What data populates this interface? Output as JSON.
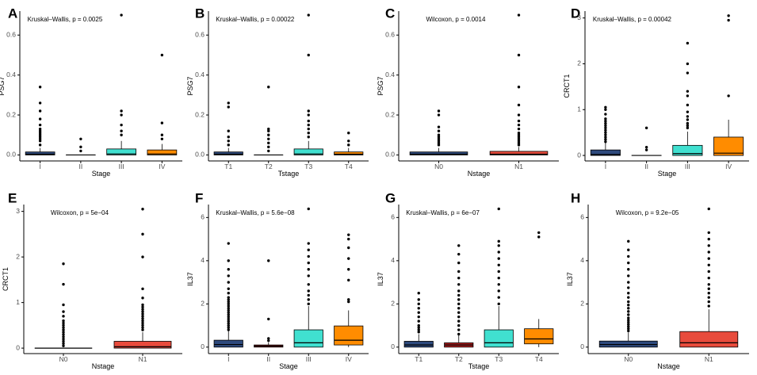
{
  "figure": {
    "description_free": true,
    "colors": {
      "I": "#2e4a7d",
      "II": "#b22222",
      "III": "#40e0d0",
      "IV": "#ff8c00",
      "T1": "#2e4a7d",
      "T2": "#b22222",
      "T3": "#40e0d0",
      "T4": "#ff8c00",
      "N0": "#2e4a7d",
      "N1": "#e84b3c",
      "outline": "#000000",
      "axis": "#000000"
    }
  },
  "chart_data": [
    {
      "panel": "A",
      "type": "box",
      "title": "",
      "stat": "Kruskal–Wallis, p = 0.0025",
      "xlabel": "Stage",
      "ylabel": "PSG7",
      "ylim": [
        -0.03,
        0.72
      ],
      "yticks": [
        "0.0",
        "0.2",
        "0.4",
        "0.6"
      ],
      "ytick_values": [
        0,
        0.2,
        0.4,
        0.6
      ],
      "categories": [
        "I",
        "II",
        "III",
        "IV"
      ],
      "boxes": [
        {
          "name": "I",
          "q1": 0.0,
          "median": 0.004,
          "q3": 0.015,
          "whislo": 0.0,
          "whishi": 0.035,
          "outliers": [
            0.05,
            0.07,
            0.08,
            0.09,
            0.1,
            0.11,
            0.12,
            0.13,
            0.15,
            0.18,
            0.22,
            0.26,
            0.34
          ]
        },
        {
          "name": "II",
          "q1": 0.0,
          "median": 0.0,
          "q3": 0.0,
          "whislo": 0.0,
          "whishi": 0.0,
          "outliers": [
            0.02,
            0.04,
            0.08
          ]
        },
        {
          "name": "III",
          "q1": 0.0,
          "median": 0.005,
          "q3": 0.03,
          "whislo": 0.0,
          "whishi": 0.07,
          "outliers": [
            0.1,
            0.12,
            0.15,
            0.2,
            0.22,
            0.7
          ]
        },
        {
          "name": "IV",
          "q1": 0.0,
          "median": 0.005,
          "q3": 0.025,
          "whislo": 0.0,
          "whishi": 0.055,
          "outliers": [
            0.08,
            0.1,
            0.16,
            0.5
          ]
        }
      ]
    },
    {
      "panel": "B",
      "type": "box",
      "stat": "Kruskal–Wallis, p = 0.00022",
      "xlabel": "Tstage",
      "ylabel": "PSG7",
      "ylim": [
        -0.03,
        0.72
      ],
      "yticks": [
        "0.0",
        "0.2",
        "0.4",
        "0.6"
      ],
      "ytick_values": [
        0,
        0.2,
        0.4,
        0.6
      ],
      "categories": [
        "T1",
        "T2",
        "T3",
        "T4"
      ],
      "boxes": [
        {
          "name": "T1",
          "q1": 0.0,
          "median": 0.004,
          "q3": 0.015,
          "whislo": 0.0,
          "whishi": 0.035,
          "outliers": [
            0.05,
            0.07,
            0.09,
            0.12,
            0.24,
            0.26
          ]
        },
        {
          "name": "T2",
          "q1": 0.0,
          "median": 0.0,
          "q3": 0.0,
          "whislo": 0.0,
          "whishi": 0.0,
          "outliers": [
            0.02,
            0.04,
            0.06,
            0.08,
            0.1,
            0.12,
            0.13,
            0.34
          ]
        },
        {
          "name": "T3",
          "q1": 0.0,
          "median": 0.005,
          "q3": 0.03,
          "whislo": 0.0,
          "whishi": 0.07,
          "outliers": [
            0.09,
            0.11,
            0.13,
            0.15,
            0.17,
            0.2,
            0.22,
            0.5,
            0.7
          ]
        },
        {
          "name": "T4",
          "q1": 0.0,
          "median": 0.004,
          "q3": 0.015,
          "whislo": 0.0,
          "whishi": 0.035,
          "outliers": [
            0.05,
            0.07,
            0.11
          ]
        }
      ]
    },
    {
      "panel": "C",
      "type": "box",
      "stat": "Wilcoxon, p = 0.0014",
      "xlabel": "Nstage",
      "ylabel": "PSG7",
      "ylim": [
        -0.03,
        0.72
      ],
      "yticks": [
        "0.0",
        "0.2",
        "0.4",
        "0.6"
      ],
      "ytick_values": [
        0,
        0.2,
        0.4,
        0.6
      ],
      "categories": [
        "N0",
        "N1"
      ],
      "boxes": [
        {
          "name": "N0",
          "q1": 0.0,
          "median": 0.004,
          "q3": 0.015,
          "whislo": 0.0,
          "whishi": 0.035,
          "outliers": [
            0.05,
            0.06,
            0.07,
            0.08,
            0.09,
            0.1,
            0.12,
            0.14,
            0.2,
            0.22
          ]
        },
        {
          "name": "N1",
          "q1": 0.0,
          "median": 0.004,
          "q3": 0.018,
          "whislo": 0.0,
          "whishi": 0.04,
          "outliers": [
            0.05,
            0.06,
            0.07,
            0.08,
            0.09,
            0.1,
            0.11,
            0.13,
            0.15,
            0.17,
            0.2,
            0.25,
            0.34,
            0.5,
            0.7
          ]
        }
      ]
    },
    {
      "panel": "D",
      "type": "box",
      "stat": "Kruskal–Wallis, p = 0.00042",
      "xlabel": "Stage",
      "ylabel": "CRCT1",
      "ylim": [
        -0.12,
        3.15
      ],
      "yticks": [
        "0",
        "1",
        "2",
        "3"
      ],
      "ytick_values": [
        0,
        1,
        2,
        3
      ],
      "categories": [
        "I",
        "II",
        "III",
        "IV"
      ],
      "boxes": [
        {
          "name": "I",
          "q1": 0.0,
          "median": 0.02,
          "q3": 0.12,
          "whislo": 0.0,
          "whishi": 0.28,
          "outliers": [
            0.3,
            0.35,
            0.4,
            0.45,
            0.5,
            0.55,
            0.6,
            0.65,
            0.7,
            0.75,
            0.8,
            0.9,
            1.0,
            1.05
          ]
        },
        {
          "name": "II",
          "q1": 0.0,
          "median": 0.0,
          "q3": 0.0,
          "whislo": 0.0,
          "whishi": 0.0,
          "outliers": [
            0.12,
            0.18,
            0.6
          ]
        },
        {
          "name": "III",
          "q1": 0.0,
          "median": 0.04,
          "q3": 0.22,
          "whislo": 0.0,
          "whishi": 0.52,
          "outliers": [
            0.6,
            0.65,
            0.7,
            0.78,
            0.85,
            0.95,
            1.1,
            1.3,
            1.4,
            1.8,
            2.0,
            2.45
          ]
        },
        {
          "name": "IV",
          "q1": 0.0,
          "median": 0.05,
          "q3": 0.4,
          "whislo": 0.0,
          "whishi": 0.78,
          "outliers": [
            1.3,
            2.95,
            3.05
          ]
        }
      ]
    },
    {
      "panel": "E",
      "type": "box",
      "stat": "Wilcoxon, p = 5e−04",
      "xlabel": "Nstage",
      "ylabel": "CRCT1",
      "ylim": [
        -0.12,
        3.15
      ],
      "yticks": [
        "0",
        "1",
        "2",
        "3"
      ],
      "ytick_values": [
        0,
        1,
        2,
        3
      ],
      "categories": [
        "N0",
        "N1"
      ],
      "boxes": [
        {
          "name": "N0",
          "q1": 0.0,
          "median": 0.0,
          "q3": 0.0,
          "whislo": 0.0,
          "whishi": 0.0,
          "outliers": [
            0.05,
            0.1,
            0.15,
            0.2,
            0.25,
            0.3,
            0.35,
            0.4,
            0.45,
            0.5,
            0.55,
            0.6,
            0.7,
            0.8,
            0.95,
            1.4,
            1.85
          ]
        },
        {
          "name": "N1",
          "q1": 0.0,
          "median": 0.03,
          "q3": 0.15,
          "whislo": 0.0,
          "whishi": 0.35,
          "outliers": [
            0.4,
            0.45,
            0.5,
            0.55,
            0.6,
            0.65,
            0.7,
            0.75,
            0.8,
            0.85,
            0.9,
            0.95,
            1.1,
            1.3,
            2.0,
            2.5,
            3.05
          ]
        }
      ]
    },
    {
      "panel": "F",
      "type": "box",
      "stat": "Kruskal–Wallis, p = 5.6e−08",
      "xlabel": "Stage",
      "ylabel": "IL37",
      "ylim": [
        -0.3,
        6.6
      ],
      "yticks": [
        "0",
        "2",
        "4",
        "6"
      ],
      "ytick_values": [
        0,
        2,
        4,
        6
      ],
      "categories": [
        "I",
        "II",
        "III",
        "IV"
      ],
      "boxes": [
        {
          "name": "I",
          "q1": 0.0,
          "median": 0.12,
          "q3": 0.32,
          "whislo": 0.0,
          "whishi": 0.75,
          "outliers": [
            0.8,
            0.9,
            1.0,
            1.1,
            1.2,
            1.3,
            1.4,
            1.5,
            1.6,
            1.7,
            1.8,
            1.9,
            2.0,
            2.1,
            2.2,
            2.3,
            2.5,
            2.7,
            3.0,
            3.3,
            3.6,
            4.0,
            4.8
          ]
        },
        {
          "name": "II",
          "q1": 0.0,
          "median": 0.05,
          "q3": 0.1,
          "whislo": 0.0,
          "whishi": 0.22,
          "outliers": [
            0.3,
            0.4,
            1.3,
            4.0
          ]
        },
        {
          "name": "III",
          "q1": 0.0,
          "median": 0.2,
          "q3": 0.8,
          "whislo": 0.0,
          "whishi": 1.9,
          "outliers": [
            2.0,
            2.2,
            2.4,
            2.6,
            2.9,
            3.3,
            3.6,
            3.9,
            4.2,
            4.5,
            4.8,
            6.4
          ]
        },
        {
          "name": "IV",
          "q1": 0.1,
          "median": 0.32,
          "q3": 0.98,
          "whislo": 0.0,
          "whishi": 1.7,
          "outliers": [
            2.1,
            2.2,
            3.1,
            3.6,
            4.1,
            4.6,
            5.0,
            5.2
          ]
        }
      ]
    },
    {
      "panel": "G",
      "type": "box",
      "stat": "Kruskal–Wallis, p = 6e−07",
      "xlabel": "Tstage",
      "ylabel": "IL37",
      "ylim": [
        -0.3,
        6.6
      ],
      "yticks": [
        "0",
        "2",
        "4",
        "6"
      ],
      "ytick_values": [
        0,
        2,
        4,
        6
      ],
      "categories": [
        "T1",
        "T2",
        "T3",
        "T4"
      ],
      "boxes": [
        {
          "name": "T1",
          "q1": 0.0,
          "median": 0.1,
          "q3": 0.27,
          "whislo": 0.0,
          "whishi": 0.6,
          "outliers": [
            0.7,
            0.8,
            0.9,
            1.0,
            1.2,
            1.4,
            1.6,
            1.8,
            2.0,
            2.2,
            2.5
          ]
        },
        {
          "name": "T2",
          "q1": 0.0,
          "median": 0.1,
          "q3": 0.2,
          "whislo": 0.0,
          "whishi": 0.55,
          "outliers": [
            0.6,
            0.8,
            1.0,
            1.2,
            1.4,
            1.6,
            1.8,
            2.0,
            2.2,
            2.4,
            2.6,
            2.9,
            3.2,
            3.5,
            3.9,
            4.3,
            4.7
          ]
        },
        {
          "name": "T3",
          "q1": 0.0,
          "median": 0.2,
          "q3": 0.8,
          "whislo": 0.0,
          "whishi": 1.9,
          "outliers": [
            2.0,
            2.3,
            2.6,
            2.9,
            3.2,
            3.5,
            3.8,
            4.1,
            4.4,
            4.7,
            4.9,
            6.4
          ]
        },
        {
          "name": "T4",
          "q1": 0.15,
          "median": 0.38,
          "q3": 0.85,
          "whislo": 0.0,
          "whishi": 1.3,
          "outliers": [
            5.1,
            5.3
          ]
        }
      ]
    },
    {
      "panel": "H",
      "type": "box",
      "stat": "Wilcoxon, p = 9.2e−05",
      "xlabel": "Nstage",
      "ylabel": "IL37",
      "ylim": [
        -0.3,
        6.6
      ],
      "yticks": [
        "0",
        "2",
        "4",
        "6"
      ],
      "ytick_values": [
        0,
        2,
        4,
        6
      ],
      "categories": [
        "N0",
        "N1"
      ],
      "boxes": [
        {
          "name": "N0",
          "q1": 0.0,
          "median": 0.12,
          "q3": 0.28,
          "whislo": 0.0,
          "whishi": 0.68,
          "outliers": [
            0.75,
            0.85,
            0.95,
            1.05,
            1.15,
            1.25,
            1.35,
            1.5,
            1.65,
            1.8,
            1.95,
            2.1,
            2.3,
            2.5,
            2.75,
            3.0,
            3.3,
            3.6,
            3.9,
            4.2,
            4.5,
            4.9
          ]
        },
        {
          "name": "N1",
          "q1": 0.0,
          "median": 0.2,
          "q3": 0.72,
          "whislo": 0.0,
          "whishi": 1.75,
          "outliers": [
            1.9,
            2.1,
            2.3,
            2.5,
            2.7,
            2.9,
            3.2,
            3.5,
            3.8,
            4.1,
            4.4,
            4.7,
            5.0,
            5.3,
            6.4
          ]
        }
      ]
    }
  ]
}
